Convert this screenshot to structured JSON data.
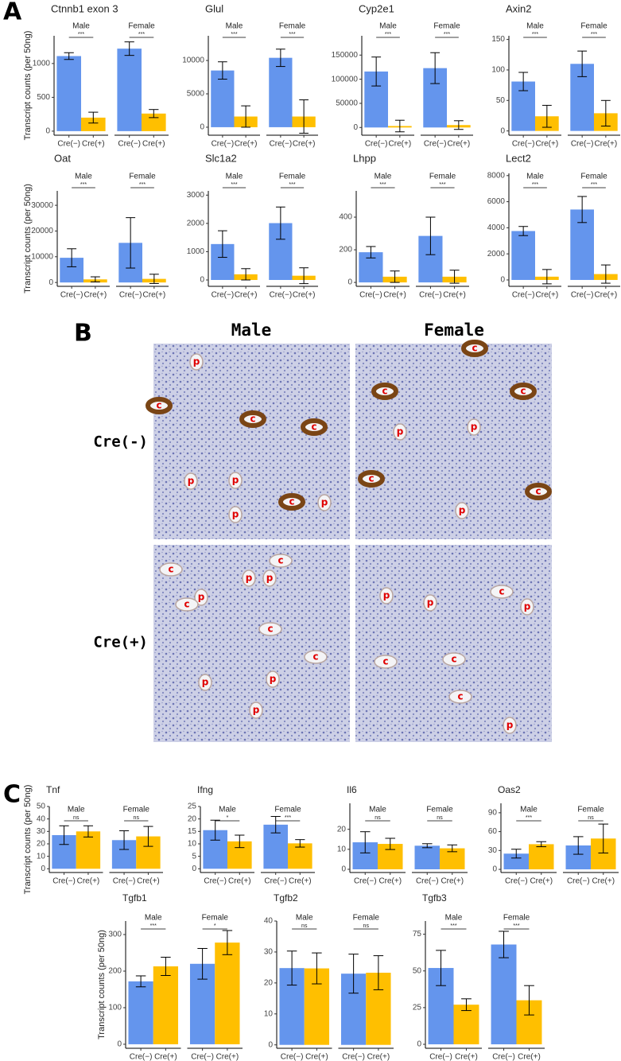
{
  "panel_labels": [
    "A",
    "B",
    "C"
  ],
  "chart_data": [
    {
      "type": "bar",
      "title": "Ctnnb1 exon 3",
      "ylabel": "Transcript counts (per 50ng)",
      "ylim": [
        -60,
        1410
      ],
      "yticks": [
        0,
        500,
        1000
      ],
      "categories": [
        "Cre(−)",
        "Cre(+)"
      ],
      "colors": [
        "#6495ED",
        "#FFBF00"
      ],
      "facets": [
        {
          "name": "Male",
          "significance": "***",
          "values": [
            1110,
            200
          ],
          "errors": [
            50,
            80
          ]
        },
        {
          "name": "Female",
          "significance": "***",
          "values": [
            1220,
            260
          ],
          "errors": [
            100,
            60
          ]
        }
      ]
    },
    {
      "type": "bar",
      "title": "Glul",
      "ylim": [
        -1200,
        13700
      ],
      "yticks": [
        0,
        5000,
        10000
      ],
      "categories": [
        "Cre(−)",
        "Cre(+)"
      ],
      "colors": [
        "#6495ED",
        "#FFBF00"
      ],
      "facets": [
        {
          "name": "Male",
          "significance": "***",
          "values": [
            8500,
            1600
          ],
          "errors": [
            1300,
            1600
          ]
        },
        {
          "name": "Female",
          "significance": "***",
          "values": [
            10400,
            1600
          ],
          "errors": [
            1300,
            2500
          ]
        }
      ]
    },
    {
      "type": "bar",
      "title": "Cyp2e1",
      "ylim": [
        -16000,
        190000
      ],
      "yticks": [
        0,
        50000,
        100000,
        150000
      ],
      "categories": [
        "Cre(−)",
        "Cre(+)"
      ],
      "colors": [
        "#6495ED",
        "#FFBF00"
      ],
      "facets": [
        {
          "name": "Male",
          "significance": "***",
          "values": [
            116000,
            3000
          ],
          "errors": [
            30000,
            12000
          ]
        },
        {
          "name": "Female",
          "significance": "***",
          "values": [
            123000,
            5000
          ],
          "errors": [
            32000,
            9000
          ]
        }
      ]
    },
    {
      "type": "bar",
      "title": "Axin2",
      "ylim": [
        -7,
        156
      ],
      "yticks": [
        0,
        50,
        100,
        150
      ],
      "categories": [
        "Cre(−)",
        "Cre(+)"
      ],
      "colors": [
        "#6495ED",
        "#FFBF00"
      ],
      "facets": [
        {
          "name": "Male",
          "significance": "***",
          "values": [
            81,
            24
          ],
          "errors": [
            15,
            18
          ]
        },
        {
          "name": "Female",
          "significance": "***",
          "values": [
            110,
            29
          ],
          "errors": [
            21,
            21
          ]
        }
      ]
    },
    {
      "type": "bar",
      "title": "Oat",
      "ylabel": "Transcript counts (per 50ng)",
      "ylim": [
        -1500,
        35600
      ],
      "yticks": [
        0,
        10000,
        20000,
        30000
      ],
      "categories": [
        "Cre(−)",
        "Cre(+)"
      ],
      "colors": [
        "#6495ED",
        "#FFBF00"
      ],
      "facets": [
        {
          "name": "Male",
          "significance": "***",
          "values": [
            9600,
            1200
          ],
          "errors": [
            3500,
            1000
          ]
        },
        {
          "name": "Female",
          "significance": "***",
          "values": [
            15400,
            1400
          ],
          "errors": [
            9800,
            1800
          ]
        }
      ]
    },
    {
      "type": "bar",
      "title": "Slc1a2",
      "ylim": [
        -225,
        3150
      ],
      "yticks": [
        0,
        1000,
        2000,
        3000
      ],
      "categories": [
        "Cre(−)",
        "Cre(+)"
      ],
      "colors": [
        "#6495ED",
        "#FFBF00"
      ],
      "facets": [
        {
          "name": "Male",
          "significance": "***",
          "values": [
            1270,
            200
          ],
          "errors": [
            470,
            200
          ]
        },
        {
          "name": "Female",
          "significance": "***",
          "values": [
            2010,
            150
          ],
          "errors": [
            570,
            280
          ]
        }
      ]
    },
    {
      "type": "bar",
      "title": "Lhpp",
      "ylim": [
        -24,
        561
      ],
      "yticks": [
        0,
        200,
        400
      ],
      "categories": [
        "Cre(−)",
        "Cre(+)"
      ],
      "colors": [
        "#6495ED",
        "#FFBF00"
      ],
      "facets": [
        {
          "name": "Male",
          "significance": "***",
          "values": [
            185,
            35
          ],
          "errors": [
            35,
            35
          ]
        },
        {
          "name": "Female",
          "significance": "***",
          "values": [
            285,
            35
          ],
          "errors": [
            115,
            40
          ]
        }
      ]
    },
    {
      "type": "bar",
      "title": "Lect2",
      "ylim": [
        -490,
        8170
      ],
      "yticks": [
        0,
        2000,
        4000,
        6000,
        8000
      ],
      "categories": [
        "Cre(−)",
        "Cre(+)"
      ],
      "colors": [
        "#6495ED",
        "#FFBF00"
      ],
      "facets": [
        {
          "name": "Male",
          "significance": "***",
          "values": [
            3750,
            250
          ],
          "errors": [
            350,
            550
          ]
        },
        {
          "name": "Female",
          "significance": "***",
          "values": [
            5400,
            450
          ],
          "errors": [
            1000,
            700
          ]
        }
      ]
    },
    {
      "type": "bar",
      "title": "Tnf",
      "ylabel": "Transcript counts (per 50ng)",
      "ylim": [
        -3,
        50
      ],
      "yticks": [
        0,
        10,
        20,
        30,
        40,
        50
      ],
      "categories": [
        "Cre(−)",
        "Cre(+)"
      ],
      "colors": [
        "#6495ED",
        "#FFBF00"
      ],
      "facets": [
        {
          "name": "Male",
          "significance": "ns",
          "values": [
            27,
            30
          ],
          "errors": [
            7.5,
            4.5
          ]
        },
        {
          "name": "Female",
          "significance": "ns",
          "values": [
            23,
            26
          ],
          "errors": [
            7.5,
            8
          ]
        }
      ]
    },
    {
      "type": "bar",
      "title": "Ifng",
      "ylim": [
        -1.5,
        25
      ],
      "yticks": [
        0,
        5,
        10,
        15,
        20,
        25
      ],
      "categories": [
        "Cre(−)",
        "Cre(+)"
      ],
      "colors": [
        "#6495ED",
        "#FFBF00"
      ],
      "facets": [
        {
          "name": "Male",
          "significance": "*",
          "values": [
            15.5,
            11
          ],
          "errors": [
            4,
            2.5
          ]
        },
        {
          "name": "Female",
          "significance": "***",
          "values": [
            17.7,
            10.2
          ],
          "errors": [
            3.3,
            1.5
          ]
        }
      ]
    },
    {
      "type": "bar",
      "title": "Il6",
      "ylim": [
        -1.6,
        33
      ],
      "yticks": [
        0,
        10,
        20
      ],
      "categories": [
        "Cre(−)",
        "Cre(+)"
      ],
      "colors": [
        "#6495ED",
        "#FFBF00"
      ],
      "facets": [
        {
          "name": "Male",
          "significance": "ns",
          "values": [
            13.5,
            12.7
          ],
          "errors": [
            5.3,
            2.8
          ]
        },
        {
          "name": "Female",
          "significance": "ns",
          "values": [
            11.8,
            10.5
          ],
          "errors": [
            1,
            1.7
          ]
        }
      ]
    },
    {
      "type": "bar",
      "title": "Oas2",
      "ylim": [
        -5,
        105
      ],
      "yticks": [
        0,
        30,
        60,
        90
      ],
      "categories": [
        "Cre(−)",
        "Cre(+)"
      ],
      "colors": [
        "#6495ED",
        "#FFBF00"
      ],
      "facets": [
        {
          "name": "Male",
          "significance": "***",
          "values": [
            25,
            40
          ],
          "errors": [
            7,
            4
          ]
        },
        {
          "name": "Female",
          "significance": "ns",
          "values": [
            38,
            49
          ],
          "errors": [
            14,
            23
          ]
        }
      ]
    },
    {
      "type": "bar",
      "title": "Tgfb1",
      "ylabel": "Transcript counts (per 50ng)",
      "ylim": [
        -11,
        337
      ],
      "yticks": [
        0,
        100,
        200,
        300
      ],
      "categories": [
        "Cre(−)",
        "Cre(+)"
      ],
      "colors": [
        "#6495ED",
        "#FFBF00"
      ],
      "facets": [
        {
          "name": "Male",
          "significance": "***",
          "values": [
            172,
            213
          ],
          "errors": [
            15,
            25
          ]
        },
        {
          "name": "Female",
          "significance": "*",
          "values": [
            220,
            278
          ],
          "errors": [
            42,
            33
          ]
        }
      ]
    },
    {
      "type": "bar",
      "title": "Tgfb2",
      "ylim": [
        -1.1,
        40
      ],
      "yticks": [
        0,
        10,
        20,
        30,
        40
      ],
      "categories": [
        "Cre(−)",
        "Cre(+)"
      ],
      "colors": [
        "#6495ED",
        "#FFBF00"
      ],
      "facets": [
        {
          "name": "Male",
          "significance": "ns",
          "values": [
            24.8,
            24.7
          ],
          "errors": [
            5.5,
            5
          ]
        },
        {
          "name": "Female",
          "significance": "ns",
          "values": [
            23,
            23.3
          ],
          "errors": [
            6.3,
            5.5
          ]
        }
      ]
    },
    {
      "type": "bar",
      "title": "Tgfb3",
      "ylim": [
        -2.7,
        84
      ],
      "yticks": [
        0,
        25,
        50,
        75
      ],
      "categories": [
        "Cre(−)",
        "Cre(+)"
      ],
      "colors": [
        "#6495ED",
        "#FFBF00"
      ],
      "facets": [
        {
          "name": "Male",
          "significance": "***",
          "values": [
            52,
            27
          ],
          "errors": [
            12,
            4
          ]
        },
        {
          "name": "Female",
          "significance": "***",
          "values": [
            68,
            30
          ],
          "errors": [
            9,
            10
          ]
        }
      ]
    }
  ],
  "micrograph": {
    "columns": [
      "Male",
      "Female"
    ],
    "rows": [
      "Cre(-)",
      "Cre(+)"
    ],
    "labels": [
      [
        "p",
        "c",
        "c",
        "p",
        "p",
        "c",
        "c",
        "p",
        "p"
      ],
      [
        "c",
        "c",
        "c",
        "p",
        "p",
        "c",
        "c",
        "p"
      ],
      [
        "c",
        "c",
        "p",
        "p",
        "p",
        "c",
        "c",
        "c",
        "p",
        "p",
        "p"
      ],
      [
        "p",
        "c",
        "p",
        "p",
        "c",
        "c",
        "c",
        "p"
      ]
    ]
  }
}
